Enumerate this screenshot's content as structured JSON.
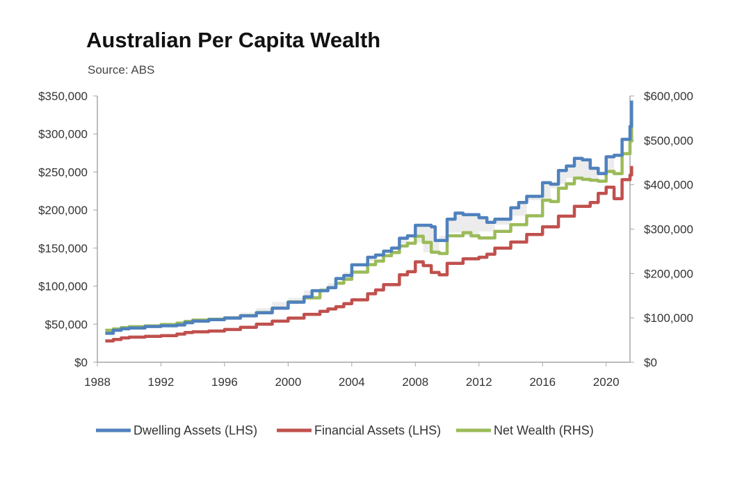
{
  "chart_data": {
    "type": "line",
    "title": "Australian Per Capita Wealth",
    "subtitle": "Source: ABS",
    "xlabel": "",
    "ylabel": "",
    "x_ticks": [
      "1988",
      "1992",
      "1996",
      "2000",
      "2004",
      "2008",
      "2012",
      "2016",
      "2020"
    ],
    "xlim": [
      1988,
      2021.5
    ],
    "y_left": {
      "ticks": [
        "$0",
        "$50,000",
        "$100,000",
        "$150,000",
        "$200,000",
        "$250,000",
        "$300,000",
        "$350,000"
      ],
      "lim": [
        0,
        350000
      ]
    },
    "y_right": {
      "ticks": [
        "$0",
        "$100,000",
        "$200,000",
        "$300,000",
        "$400,000",
        "$500,000",
        "$600,000"
      ],
      "lim": [
        0,
        600000
      ]
    },
    "grid": false,
    "legend_position": "bottom",
    "series": [
      {
        "name": "Dwelling Assets (LHS)",
        "axis": "left",
        "color": "#4f81bd",
        "points": [
          [
            1988.5,
            38000
          ],
          [
            1989,
            42000
          ],
          [
            1989.5,
            44000
          ],
          [
            1990,
            45000
          ],
          [
            1991,
            47000
          ],
          [
            1992,
            48000
          ],
          [
            1993,
            49000
          ],
          [
            1993.5,
            52000
          ],
          [
            1994,
            54000
          ],
          [
            1995,
            56000
          ],
          [
            1996,
            58000
          ],
          [
            1997,
            61000
          ],
          [
            1998,
            65000
          ],
          [
            1999,
            71000
          ],
          [
            2000,
            79000
          ],
          [
            2001,
            86000
          ],
          [
            2001.5,
            94000
          ],
          [
            2002.5,
            98000
          ],
          [
            2003,
            110000
          ],
          [
            2003.5,
            114000
          ],
          [
            2004,
            128000
          ],
          [
            2005,
            138000
          ],
          [
            2005.5,
            141000
          ],
          [
            2006,
            146000
          ],
          [
            2006.5,
            150000
          ],
          [
            2007,
            163000
          ],
          [
            2007.5,
            166000
          ],
          [
            2008,
            180000
          ],
          [
            2009,
            178000
          ],
          [
            2009.25,
            160000
          ],
          [
            2010,
            188000
          ],
          [
            2010.5,
            196000
          ],
          [
            2011,
            194000
          ],
          [
            2012,
            190000
          ],
          [
            2012.5,
            184000
          ],
          [
            2013,
            188000
          ],
          [
            2014,
            203000
          ],
          [
            2014.5,
            210000
          ],
          [
            2015,
            218000
          ],
          [
            2016,
            236000
          ],
          [
            2016.5,
            234000
          ],
          [
            2017,
            252000
          ],
          [
            2017.5,
            258000
          ],
          [
            2018,
            268000
          ],
          [
            2018.5,
            266000
          ],
          [
            2019,
            255000
          ],
          [
            2019.5,
            248000
          ],
          [
            2020,
            270000
          ],
          [
            2020.5,
            272000
          ],
          [
            2021,
            293000
          ],
          [
            2021.5,
            310000
          ],
          [
            2021.6,
            344000
          ]
        ]
      },
      {
        "name": "Financial Assets (LHS)",
        "axis": "left",
        "color": "#c0504d",
        "points": [
          [
            1988.5,
            28000
          ],
          [
            1989,
            30000
          ],
          [
            1989.5,
            32000
          ],
          [
            1990,
            33000
          ],
          [
            1991,
            34000
          ],
          [
            1992,
            35000
          ],
          [
            1993,
            37000
          ],
          [
            1993.5,
            39000
          ],
          [
            1994,
            40000
          ],
          [
            1995,
            41000
          ],
          [
            1996,
            43000
          ],
          [
            1997,
            46000
          ],
          [
            1998,
            50000
          ],
          [
            1999,
            54000
          ],
          [
            2000,
            58000
          ],
          [
            2001,
            63000
          ],
          [
            2002,
            67000
          ],
          [
            2002.5,
            70000
          ],
          [
            2003,
            73000
          ],
          [
            2003.5,
            77000
          ],
          [
            2004,
            82000
          ],
          [
            2005,
            90000
          ],
          [
            2005.5,
            95000
          ],
          [
            2006,
            102000
          ],
          [
            2007,
            115000
          ],
          [
            2007.5,
            119000
          ],
          [
            2008,
            132000
          ],
          [
            2008.5,
            127000
          ],
          [
            2009,
            118000
          ],
          [
            2009.5,
            115000
          ],
          [
            2010,
            130000
          ],
          [
            2011,
            136000
          ],
          [
            2012,
            138000
          ],
          [
            2012.5,
            142000
          ],
          [
            2013,
            150000
          ],
          [
            2014,
            158000
          ],
          [
            2015,
            168000
          ],
          [
            2016,
            178000
          ],
          [
            2017,
            192000
          ],
          [
            2018,
            205000
          ],
          [
            2018.5,
            205000
          ],
          [
            2019,
            210000
          ],
          [
            2019.5,
            222000
          ],
          [
            2020,
            230000
          ],
          [
            2020.5,
            215000
          ],
          [
            2021,
            240000
          ],
          [
            2021.5,
            246000
          ],
          [
            2021.6,
            258000
          ]
        ]
      },
      {
        "name": "Net Wealth (RHS)",
        "axis": "right",
        "color": "#9bbb59",
        "points": [
          [
            1988.5,
            72000
          ],
          [
            1989,
            75000
          ],
          [
            1989.5,
            78000
          ],
          [
            1990,
            80000
          ],
          [
            1991,
            82000
          ],
          [
            1992,
            85000
          ],
          [
            1993,
            88000
          ],
          [
            1993.5,
            92000
          ],
          [
            1994,
            95000
          ],
          [
            1995,
            97000
          ],
          [
            1996,
            100000
          ],
          [
            1997,
            105000
          ],
          [
            1998,
            112000
          ],
          [
            1999,
            122000
          ],
          [
            2000,
            136000
          ],
          [
            2001,
            145000
          ],
          [
            2002,
            162000
          ],
          [
            2002.5,
            168000
          ],
          [
            2003,
            178000
          ],
          [
            2003.5,
            187000
          ],
          [
            2004,
            203000
          ],
          [
            2005,
            220000
          ],
          [
            2005.5,
            228000
          ],
          [
            2006,
            240000
          ],
          [
            2006.5,
            247000
          ],
          [
            2007,
            262000
          ],
          [
            2007.5,
            268000
          ],
          [
            2008,
            284000
          ],
          [
            2008.5,
            270000
          ],
          [
            2009,
            248000
          ],
          [
            2009.5,
            245000
          ],
          [
            2010,
            285000
          ],
          [
            2011,
            292000
          ],
          [
            2011.5,
            285000
          ],
          [
            2012,
            280000
          ],
          [
            2013,
            295000
          ],
          [
            2014,
            310000
          ],
          [
            2015,
            330000
          ],
          [
            2016,
            365000
          ],
          [
            2016.5,
            362000
          ],
          [
            2017,
            392000
          ],
          [
            2017.5,
            402000
          ],
          [
            2018,
            415000
          ],
          [
            2018.5,
            412000
          ],
          [
            2019,
            410000
          ],
          [
            2019.5,
            408000
          ],
          [
            2020,
            430000
          ],
          [
            2020.5,
            425000
          ],
          [
            2021,
            470000
          ],
          [
            2021.5,
            498000
          ],
          [
            2021.6,
            540000
          ]
        ]
      }
    ],
    "shaded_band": {
      "between": [
        "Dwelling Assets (LHS)",
        "Net Wealth (RHS)"
      ],
      "color": "#d9d9d9"
    }
  }
}
